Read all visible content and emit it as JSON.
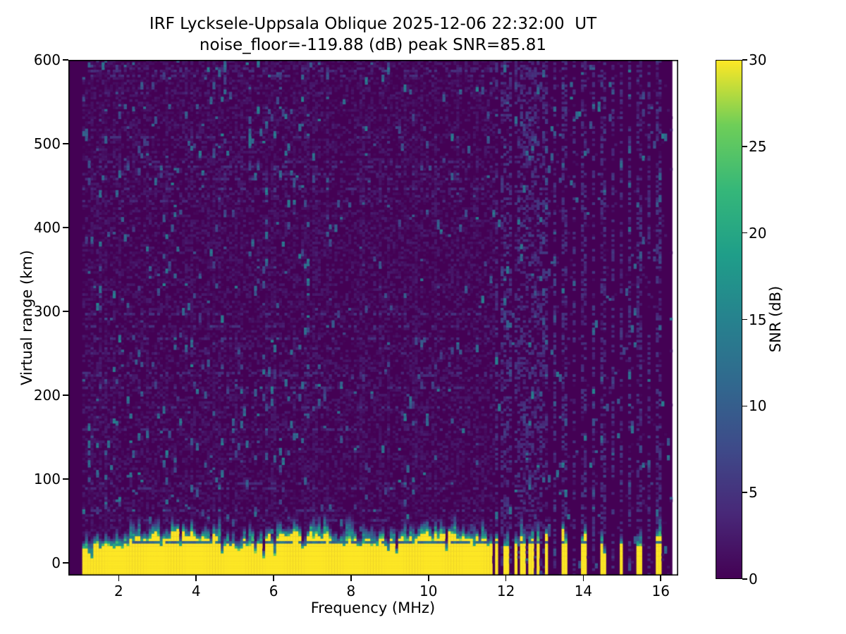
{
  "figure": {
    "title_line1": "IRF Lycksele-Uppsala Oblique 2025-12-06 22:32:00  UT",
    "title_line2": "noise_floor=-119.88 (dB) peak SNR=85.81"
  },
  "chart_data": {
    "type": "heatmap",
    "title": "IRF Lycksele-Uppsala Oblique 2025-12-06 22:32:00  UT",
    "subtitle": "noise_floor=-119.88 (dB) peak SNR=85.81",
    "xlabel": "Frequency (MHz)",
    "ylabel": "Virtual range (km)",
    "colorbar_label": "SNR (dB)",
    "xlim": [
      0.7,
      16.45
    ],
    "ylim": [
      -15,
      600
    ],
    "clim": [
      0,
      30
    ],
    "x_ticks": [
      2,
      4,
      6,
      8,
      10,
      12,
      14,
      16
    ],
    "y_ticks": [
      0,
      100,
      200,
      300,
      400,
      500,
      600
    ],
    "colorbar_ticks": [
      0,
      5,
      10,
      15,
      20,
      25,
      30
    ],
    "colormap": "viridis",
    "colormap_stops": [
      [
        0.0,
        "#440154"
      ],
      [
        0.125,
        "#482878"
      ],
      [
        0.25,
        "#3e4a89"
      ],
      [
        0.375,
        "#31688e"
      ],
      [
        0.5,
        "#26828e"
      ],
      [
        0.625,
        "#1f9e89"
      ],
      [
        0.75,
        "#35b779"
      ],
      [
        0.875,
        "#6ece58"
      ],
      [
        1.0,
        "#fde725"
      ]
    ],
    "noise_floor_db": -119.88,
    "peak_snr_db": 85.81,
    "data_freq_range_mhz": [
      0.7,
      16.3
    ],
    "no_signal_below_mhz": 1.04,
    "ground_echo_band": {
      "freq_start_mhz": 1.04,
      "freq_end_mhz": 11.68,
      "saturated_value_db": 30,
      "saturated_top_km_min": 20,
      "saturated_top_km_max": 38,
      "fringe_top_km_max": 58,
      "dark_notch_km": 25.5
    },
    "discrete_stripes_mhz": [
      11.77,
      12.02,
      12.24,
      12.44,
      12.64,
      12.84,
      13.04,
      13.5,
      14.0,
      14.5,
      14.97,
      15.45,
      15.96
    ],
    "background_noise": {
      "typical_db_range": [
        0,
        3
      ],
      "speckle_streak_db_max": 15,
      "denser_below_mhz": 6.5
    }
  }
}
